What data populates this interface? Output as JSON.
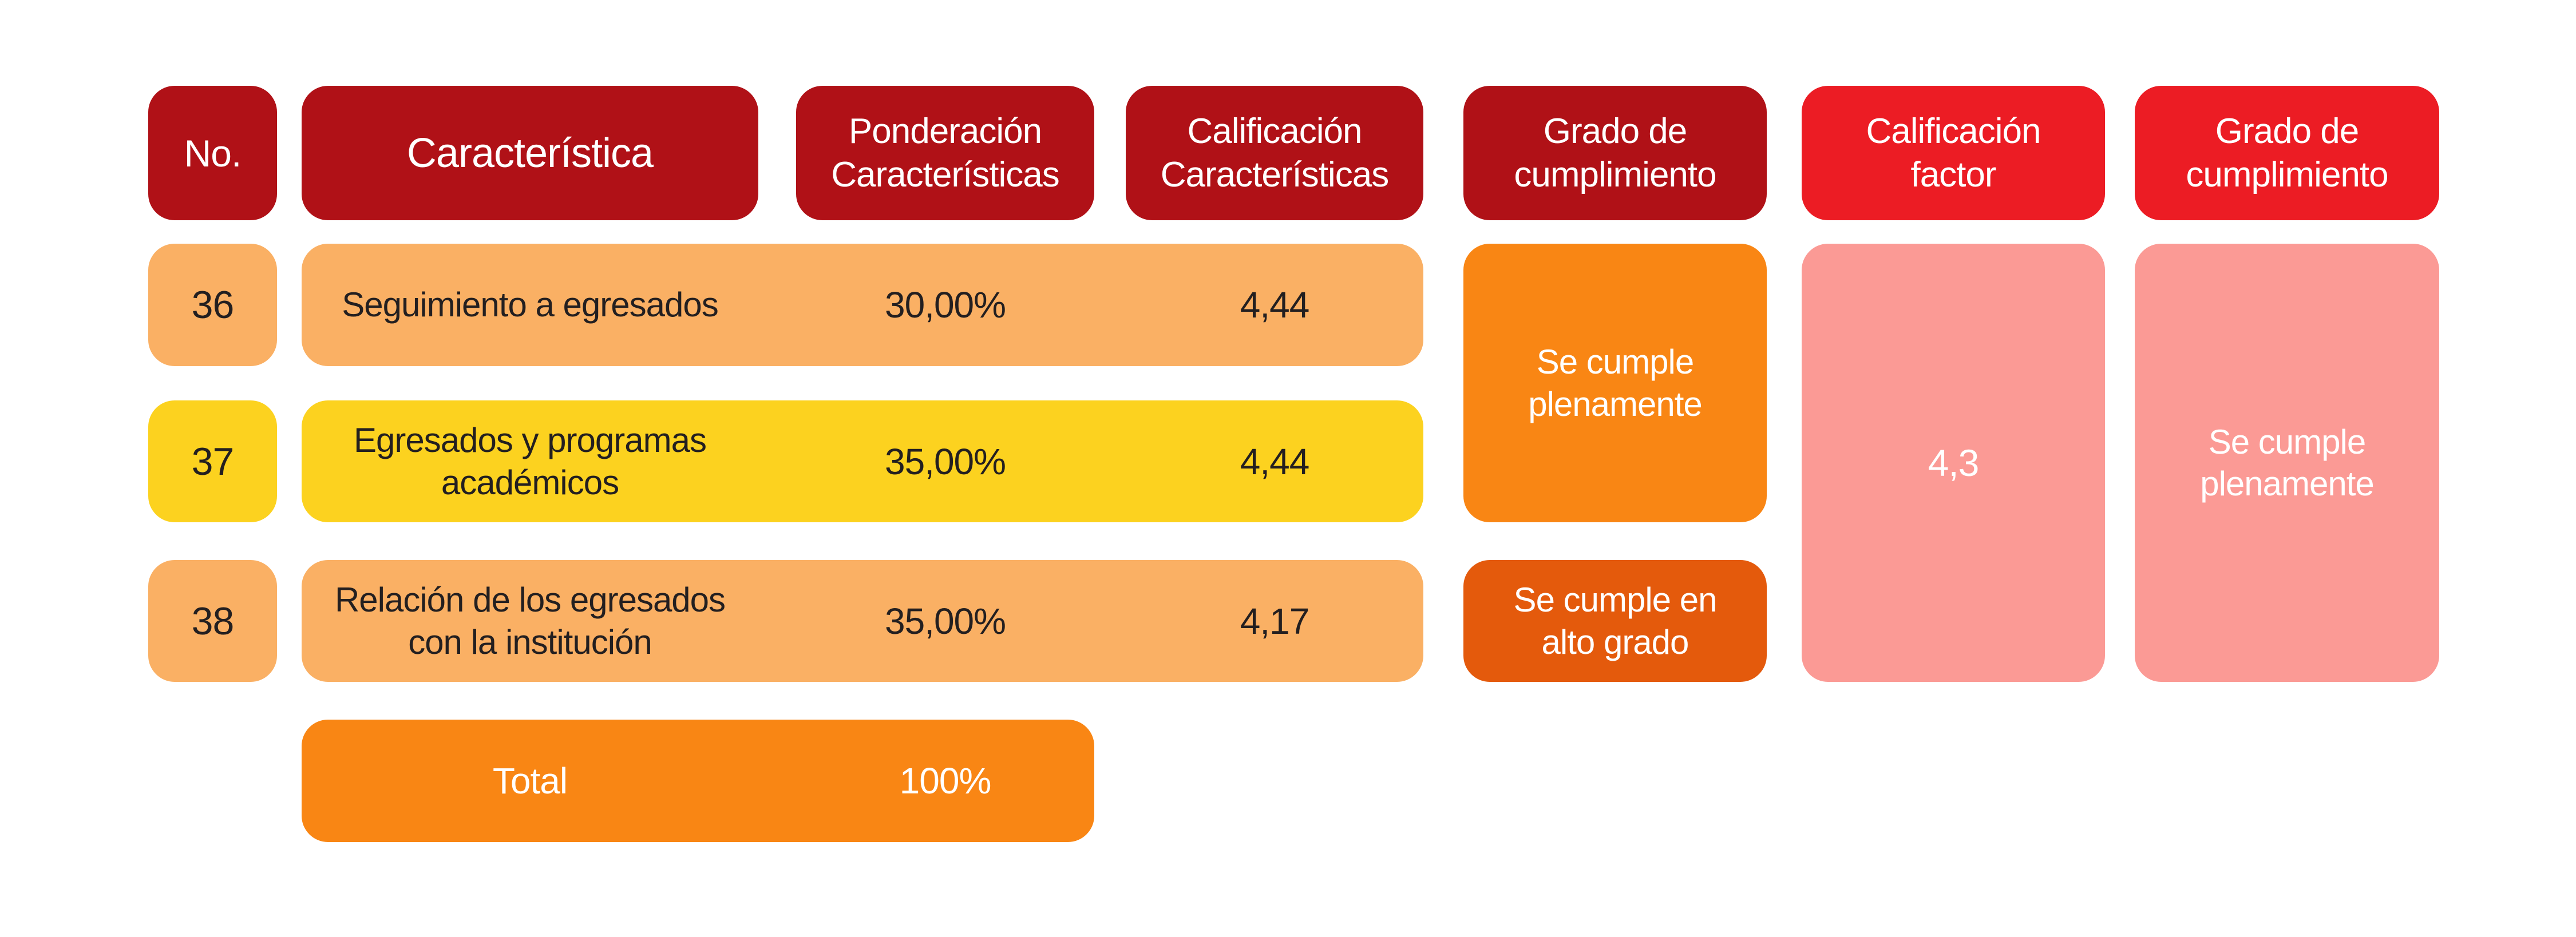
{
  "header": {
    "no": "No.",
    "caracteristica": "Característica",
    "ponderacion": "Ponderación\nCaracterísticas",
    "calificacion": "Calificación\nCaracterísticas",
    "grado_cumplimiento": "Grado de\ncumplimiento",
    "calificacion_factor": "Calificación\nfactor",
    "grado_cumplimiento_2": "Grado de\ncumplimiento"
  },
  "rows": [
    {
      "no": "36",
      "name": "Seguimiento a egresados",
      "ponderacion": "30,00%",
      "calificacion": "4,44"
    },
    {
      "no": "37",
      "name": "Egresados y programas\nacadémicos",
      "ponderacion": "35,00%",
      "calificacion": "4,44"
    },
    {
      "no": "38",
      "name": "Relación de los egresados\ncon la institución",
      "ponderacion": "35,00%",
      "calificacion": "4,17"
    }
  ],
  "grado": {
    "rows_36_37": "Se cumple\nplenamente",
    "row_38": "Se cumple en\nalto grado"
  },
  "factor": {
    "value": "4,3",
    "grado": "Se cumple\nplenamente"
  },
  "total": {
    "label": "Total",
    "value": "100%"
  },
  "colors": {
    "header_dark_red": "#B01117",
    "header_bright_red": "#EC1C24",
    "row_light_orange": "#FAB064",
    "row_yellow": "#FCD21F",
    "cell_orange": "#F98614",
    "cell_dark_orange": "#E45A0C",
    "cell_pink": "#FB9A95",
    "text_dark": "#231F20",
    "text_white": "#FFFFFF"
  },
  "chart_data": {
    "type": "table",
    "columns": [
      "No.",
      "Característica",
      "Ponderación Características",
      "Calificación Características",
      "Grado de cumplimiento",
      "Calificación factor",
      "Grado de cumplimiento"
    ],
    "rows": [
      [
        36,
        "Seguimiento a egresados",
        "30,00%",
        "4,44",
        "Se cumple plenamente",
        "4,3",
        "Se cumple plenamente"
      ],
      [
        37,
        "Egresados y programas académicos",
        "35,00%",
        "4,44",
        "Se cumple plenamente",
        "4,3",
        "Se cumple plenamente"
      ],
      [
        38,
        "Relación de los egresados con la institución",
        "35,00%",
        "4,17",
        "Se cumple en alto grado",
        "4,3",
        "Se cumple plenamente"
      ]
    ],
    "merged_cells": [
      {
        "column": "Grado de cumplimiento",
        "rows": [
          36,
          37
        ],
        "value": "Se cumple plenamente"
      },
      {
        "column": "Calificación factor",
        "rows": [
          36,
          37,
          38
        ],
        "value": "4,3"
      },
      {
        "column": "Grado de cumplimiento (factor)",
        "rows": [
          36,
          37,
          38
        ],
        "value": "Se cumple plenamente"
      }
    ],
    "total_row": {
      "label": "Total",
      "ponderacion": "100%"
    }
  }
}
